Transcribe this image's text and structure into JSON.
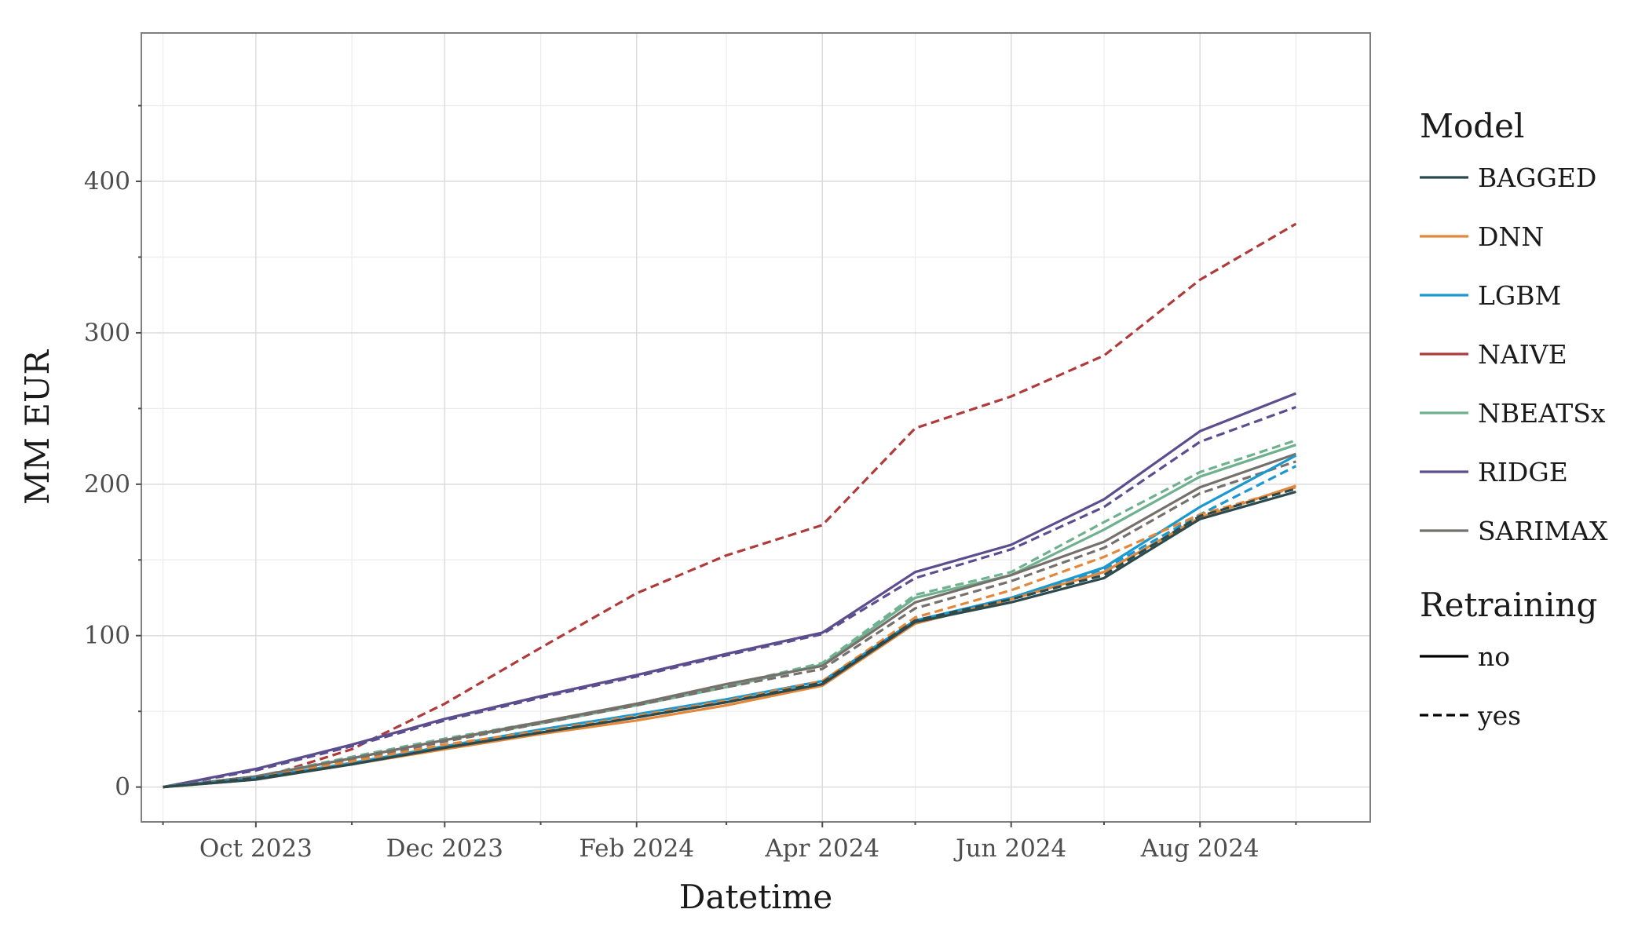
{
  "chart_data": {
    "type": "line",
    "title": "",
    "xlabel": "Datetime",
    "ylabel": "MM EUR",
    "x_type": "date",
    "xlim": [
      "2023-08-25",
      "2024-09-25"
    ],
    "ylim": [
      -23,
      498
    ],
    "x_ticks": [
      {
        "date": "2023-10-01",
        "label": "Oct 2023"
      },
      {
        "date": "2023-12-01",
        "label": "Dec 2023"
      },
      {
        "date": "2024-02-01",
        "label": "Feb 2024"
      },
      {
        "date": "2024-04-01",
        "label": "Apr 2024"
      },
      {
        "date": "2024-06-01",
        "label": "Jun 2024"
      },
      {
        "date": "2024-08-01",
        "label": "Aug 2024"
      }
    ],
    "x_minor_ticks": [
      "2023-09-01",
      "2023-11-01",
      "2024-01-01",
      "2024-03-01",
      "2024-05-01",
      "2024-07-01",
      "2024-09-01"
    ],
    "y_ticks": [
      {
        "value": 0,
        "label": "0"
      },
      {
        "value": 100,
        "label": "100"
      },
      {
        "value": 200,
        "label": "200"
      },
      {
        "value": 300,
        "label": "300"
      },
      {
        "value": 400,
        "label": "400"
      }
    ],
    "y_minor_ticks": [
      50,
      150,
      250,
      350,
      450
    ],
    "grid": true,
    "legend_position": "right",
    "legend": {
      "model_title": "Model",
      "retraining_title": "Retraining",
      "models": [
        {
          "name": "BAGGED",
          "color": "#2b4a4d"
        },
        {
          "name": "DNN",
          "color": "#e3883b"
        },
        {
          "name": "LGBM",
          "color": "#1a98cf"
        },
        {
          "name": "NAIVE",
          "color": "#b03a3a"
        },
        {
          "name": "NBEATSx",
          "color": "#6fb08f"
        },
        {
          "name": "RIDGE",
          "color": "#5b4d8e"
        },
        {
          "name": "SARIMAX",
          "color": "#75706b"
        }
      ],
      "retraining": [
        {
          "name": "no",
          "dash": "solid"
        },
        {
          "name": "yes",
          "dash": "dashed"
        }
      ]
    },
    "x": [
      "2023-09-01",
      "2023-10-01",
      "2023-11-01",
      "2023-12-01",
      "2024-01-01",
      "2024-02-01",
      "2024-03-01",
      "2024-04-01",
      "2024-05-01",
      "2024-06-01",
      "2024-07-01",
      "2024-08-01",
      "2024-09-01"
    ],
    "series": [
      {
        "name": "NAIVE",
        "retraining": "yes",
        "color": "#b03a3a",
        "dash": "dashed",
        "values": [
          0,
          5,
          25,
          55,
          92,
          128,
          153,
          173,
          237,
          258,
          285,
          335,
          372
        ]
      },
      {
        "name": "RIDGE",
        "retraining": "no",
        "color": "#5b4d8e",
        "dash": "solid",
        "values": [
          0,
          12,
          28,
          45,
          60,
          74,
          88,
          102,
          142,
          160,
          190,
          235,
          260
        ]
      },
      {
        "name": "RIDGE",
        "retraining": "yes",
        "color": "#5b4d8e",
        "dash": "dashed",
        "values": [
          0,
          11,
          27,
          44,
          59,
          73,
          87,
          101,
          138,
          157,
          185,
          228,
          251
        ]
      },
      {
        "name": "NBEATSx",
        "retraining": "no",
        "color": "#6fb08f",
        "dash": "solid",
        "values": [
          0,
          7,
          19,
          31,
          42,
          54,
          66,
          81,
          125,
          140,
          170,
          205,
          226
        ]
      },
      {
        "name": "NBEATSx",
        "retraining": "yes",
        "color": "#6fb08f",
        "dash": "dashed",
        "values": [
          0,
          7,
          20,
          32,
          43,
          55,
          67,
          82,
          127,
          142,
          175,
          208,
          229
        ]
      },
      {
        "name": "SARIMAX",
        "retraining": "no",
        "color": "#75706b",
        "dash": "solid",
        "values": [
          0,
          7,
          19,
          31,
          43,
          55,
          68,
          80,
          122,
          140,
          162,
          198,
          220
        ]
      },
      {
        "name": "SARIMAX",
        "retraining": "yes",
        "color": "#75706b",
        "dash": "dashed",
        "values": [
          0,
          7,
          18,
          30,
          42,
          54,
          66,
          78,
          118,
          136,
          158,
          194,
          215
        ]
      },
      {
        "name": "LGBM",
        "retraining": "no",
        "color": "#1a98cf",
        "dash": "solid",
        "values": [
          0,
          6,
          16,
          27,
          38,
          48,
          58,
          70,
          110,
          125,
          145,
          185,
          219
        ]
      },
      {
        "name": "LGBM",
        "retraining": "yes",
        "color": "#1a98cf",
        "dash": "dashed",
        "values": [
          0,
          6,
          16,
          27,
          37,
          47,
          57,
          69,
          108,
          124,
          144,
          180,
          212
        ]
      },
      {
        "name": "DNN",
        "retraining": "no",
        "color": "#e3883b",
        "dash": "solid",
        "values": [
          0,
          5,
          15,
          25,
          35,
          44,
          54,
          67,
          108,
          124,
          142,
          178,
          199
        ]
      },
      {
        "name": "DNN",
        "retraining": "yes",
        "color": "#e3883b",
        "dash": "dashed",
        "values": [
          0,
          6,
          17,
          28,
          37,
          47,
          57,
          70,
          112,
          130,
          152,
          180,
          198
        ]
      },
      {
        "name": "BAGGED",
        "retraining": "no",
        "color": "#2b4a4d",
        "dash": "solid",
        "values": [
          0,
          5,
          15,
          26,
          36,
          46,
          56,
          68,
          109,
          122,
          138,
          177,
          195
        ]
      },
      {
        "name": "BAGGED",
        "retraining": "yes",
        "color": "#2b4a4d",
        "dash": "dashed",
        "values": [
          0,
          6,
          15,
          26,
          36,
          46,
          56,
          69,
          110,
          124,
          140,
          179,
          197
        ]
      }
    ]
  }
}
